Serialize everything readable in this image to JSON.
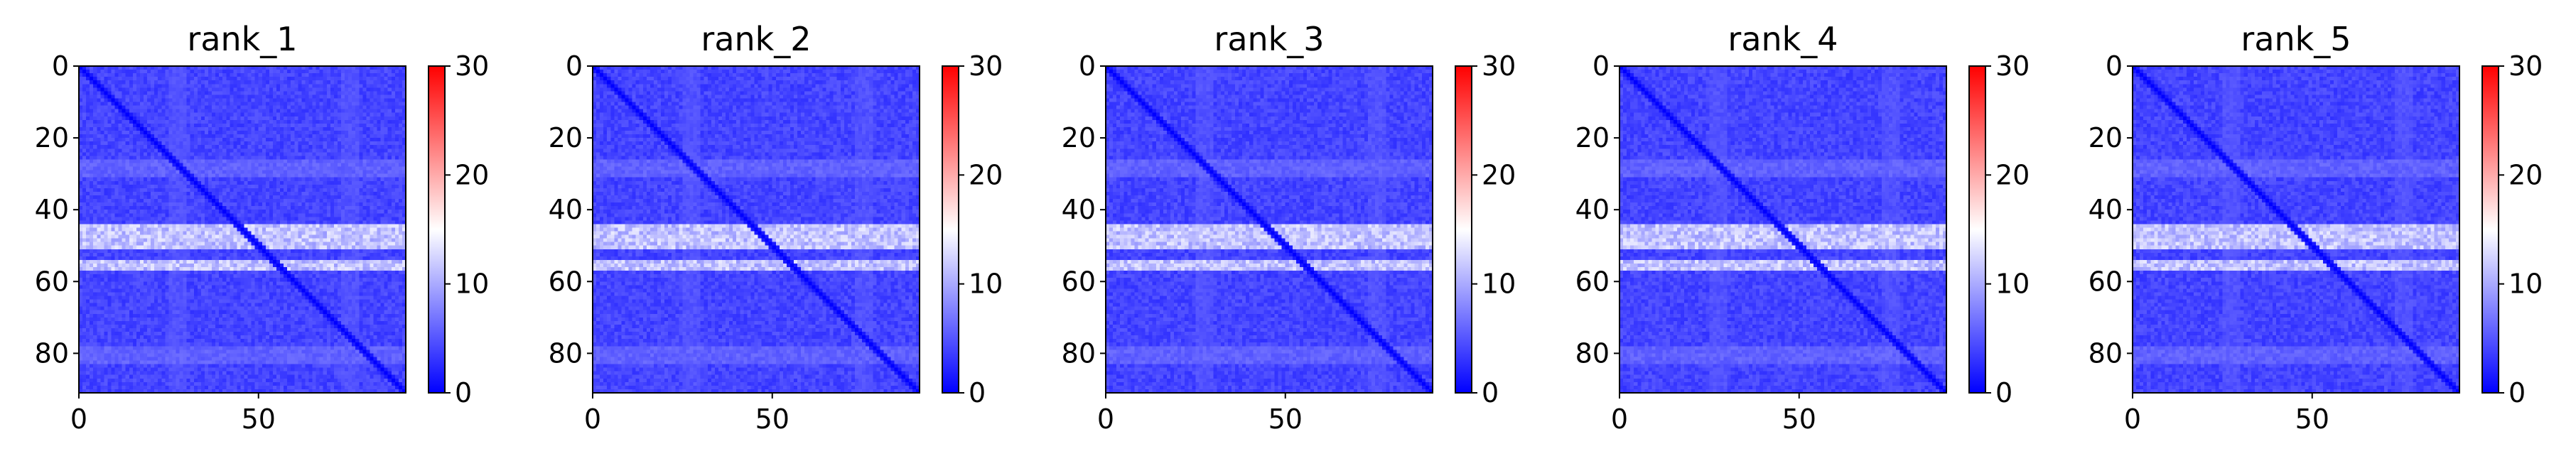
{
  "figure": {
    "colormap": "bwr",
    "colors": {
      "low": "#0000ff",
      "mid": "#ffffff",
      "high": "#ff0000"
    }
  },
  "chart_data": [
    {
      "type": "heatmap",
      "title": "rank_1",
      "matrix_size": 91,
      "x_ticks": [
        0,
        50
      ],
      "y_ticks": [
        0,
        20,
        40,
        60,
        80
      ],
      "colorbar": {
        "min": 0,
        "max": 30,
        "ticks": [
          0,
          10,
          20,
          30
        ]
      },
      "value_summary": {
        "typical_range": [
          0,
          8
        ],
        "diagonal_value": 0,
        "bright_rows": [
          [
            44,
            50
          ],
          [
            54,
            56
          ]
        ],
        "bright_row_value": 12,
        "faint_rows": [
          28,
          80
        ],
        "faint_row_value": 6,
        "faint_cols": [
          27,
          75
        ],
        "faint_col_value": 5
      }
    },
    {
      "type": "heatmap",
      "title": "rank_2",
      "matrix_size": 91,
      "x_ticks": [
        0,
        50
      ],
      "y_ticks": [
        0,
        20,
        40,
        60,
        80
      ],
      "colorbar": {
        "min": 0,
        "max": 30,
        "ticks": [
          0,
          10,
          20,
          30
        ]
      },
      "value_summary": {
        "typical_range": [
          0,
          8
        ],
        "diagonal_value": 0,
        "bright_rows": [
          [
            44,
            50
          ],
          [
            54,
            56
          ]
        ],
        "bright_row_value": 12,
        "faint_rows": [
          28,
          80
        ],
        "faint_row_value": 6,
        "faint_cols": [
          27,
          75
        ],
        "faint_col_value": 5
      }
    },
    {
      "type": "heatmap",
      "title": "rank_3",
      "matrix_size": 91,
      "x_ticks": [
        0,
        50
      ],
      "y_ticks": [
        0,
        20,
        40,
        60,
        80
      ],
      "colorbar": {
        "min": 0,
        "max": 30,
        "ticks": [
          0,
          10,
          20,
          30
        ]
      },
      "value_summary": {
        "typical_range": [
          0,
          8
        ],
        "diagonal_value": 0,
        "bright_rows": [
          [
            44,
            50
          ],
          [
            54,
            56
          ]
        ],
        "bright_row_value": 12,
        "faint_rows": [
          28,
          80
        ],
        "faint_row_value": 6,
        "faint_cols": [
          27,
          75
        ],
        "faint_col_value": 5
      }
    },
    {
      "type": "heatmap",
      "title": "rank_4",
      "matrix_size": 91,
      "x_ticks": [
        0,
        50
      ],
      "y_ticks": [
        0,
        20,
        40,
        60,
        80
      ],
      "colorbar": {
        "min": 0,
        "max": 30,
        "ticks": [
          0,
          10,
          20,
          30
        ]
      },
      "value_summary": {
        "typical_range": [
          0,
          8
        ],
        "diagonal_value": 0,
        "bright_rows": [
          [
            44,
            50
          ],
          [
            54,
            56
          ]
        ],
        "bright_row_value": 12,
        "faint_rows": [
          28,
          80
        ],
        "faint_row_value": 6,
        "faint_cols": [
          27,
          75
        ],
        "faint_col_value": 5
      }
    },
    {
      "type": "heatmap",
      "title": "rank_5",
      "matrix_size": 91,
      "x_ticks": [
        0,
        50
      ],
      "y_ticks": [
        0,
        20,
        40,
        60,
        80
      ],
      "colorbar": {
        "min": 0,
        "max": 30,
        "ticks": [
          0,
          10,
          20,
          30
        ]
      },
      "value_summary": {
        "typical_range": [
          0,
          8
        ],
        "diagonal_value": 0,
        "bright_rows": [
          [
            44,
            50
          ],
          [
            54,
            56
          ]
        ],
        "bright_row_value": 12,
        "faint_rows": [
          28,
          80
        ],
        "faint_row_value": 6,
        "faint_cols": [
          27,
          75
        ],
        "faint_col_value": 5
      }
    }
  ]
}
